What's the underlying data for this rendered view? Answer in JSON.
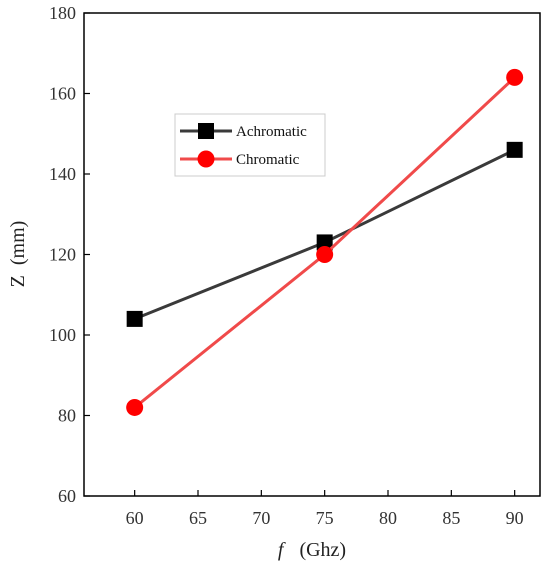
{
  "chart_data": {
    "type": "line",
    "title": "",
    "x": [
      60,
      75,
      90
    ],
    "xlim": [
      56,
      92
    ],
    "xticks": [
      60,
      65,
      70,
      75,
      80,
      85,
      90
    ],
    "ylim": [
      60,
      180
    ],
    "yticks": [
      60,
      80,
      100,
      120,
      140,
      160,
      180
    ],
    "xlabel": {
      "var": "f",
      "unit": "(Ghz)"
    },
    "ylabel": "Z  (mm)",
    "series": [
      {
        "name": "Achromatic",
        "values": [
          104,
          123,
          146
        ],
        "color": "#3a3a3a",
        "marker_color": "#000000",
        "marker": "square"
      },
      {
        "name": "Chromatic",
        "values": [
          82,
          120,
          164
        ],
        "color": "#f04a4a",
        "marker_color": "#ff0000",
        "marker": "circle"
      }
    ],
    "legend": {
      "placement": "upper-left-inside"
    },
    "grid": false
  }
}
